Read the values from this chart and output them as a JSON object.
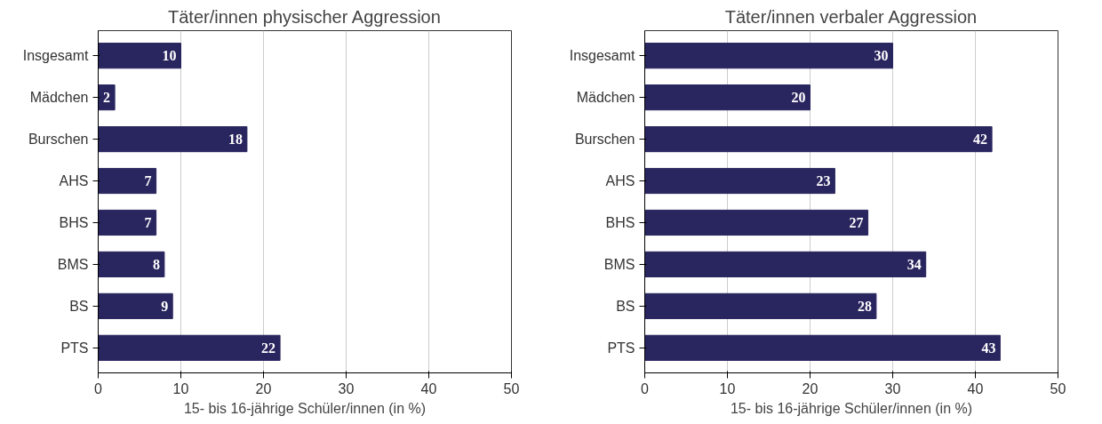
{
  "chart_data": [
    {
      "type": "bar",
      "orientation": "horizontal",
      "title": "Täter/innen physischer Aggression",
      "xlabel": "15- bis 16-jährige Schüler/innen (in %)",
      "categories": [
        "Insgesamt",
        "Mädchen",
        "Burschen",
        "AHS",
        "BHS",
        "BMS",
        "BS",
        "PTS"
      ],
      "values": [
        10,
        2,
        18,
        7,
        7,
        8,
        9,
        22
      ],
      "color": "#29255e",
      "xlim": [
        0,
        50
      ],
      "xticks": [
        0,
        10,
        20,
        30,
        40,
        50
      ],
      "grid": "x",
      "data_labels": true
    },
    {
      "type": "bar",
      "orientation": "horizontal",
      "title": "Täter/innen verbaler Aggression",
      "xlabel": "15- bis 16-jährige Schüler/innen (in %)",
      "categories": [
        "Insgesamt",
        "Mädchen",
        "Burschen",
        "AHS",
        "BHS",
        "BMS",
        "BS",
        "PTS"
      ],
      "values": [
        30,
        20,
        42,
        23,
        27,
        34,
        28,
        43
      ],
      "color": "#29255e",
      "xlim": [
        0,
        50
      ],
      "xticks": [
        0,
        10,
        20,
        30,
        40,
        50
      ],
      "grid": "x",
      "data_labels": true
    }
  ]
}
